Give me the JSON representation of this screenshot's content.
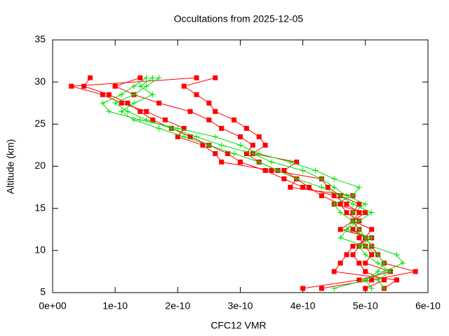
{
  "chart_data": {
    "type": "line",
    "title": "Occultations from 2025-12-05",
    "x_label": "CFC12 VMR",
    "y_label": "Altitude (km)",
    "xlim": [
      0,
      6e-10
    ],
    "xticks": [
      {
        "value": 0,
        "label": "0e+00"
      },
      {
        "value": 1e-10,
        "label": "1e-10"
      },
      {
        "value": 2e-10,
        "label": "2e-10"
      },
      {
        "value": 3e-10,
        "label": "3e-10"
      },
      {
        "value": 4e-10,
        "label": "4e-10"
      },
      {
        "value": 5e-10,
        "label": "5e-10"
      },
      {
        "value": 6e-10,
        "label": "6e-10"
      }
    ],
    "ylim": [
      5,
      35
    ],
    "yticks": [
      5,
      10,
      15,
      20,
      25,
      30,
      35
    ],
    "y": [
      5.5,
      6.5,
      7.5,
      8.5,
      9.5,
      10.5,
      11.5,
      12.5,
      13.5,
      14.5,
      15.5,
      16.5,
      17.5,
      18.5,
      19.5,
      20.5,
      21.5,
      22.5,
      23.5,
      24.5,
      25.5,
      26.5,
      27.5,
      28.5,
      29.5,
      30.5
    ],
    "series": [
      {
        "color": "#ff0000",
        "marker": "square",
        "values": [
          4e-10,
          4.9e-10,
          5.4e-10,
          5e-10,
          5.1e-10,
          5e-10,
          4.9e-10,
          4.9e-10,
          4.8e-10,
          4.9e-10,
          4.7e-10,
          4.5e-10,
          4e-10,
          3.7e-10,
          3.4e-10,
          3e-10,
          2.8e-10,
          2.5e-10,
          2.2e-10,
          1.9e-10,
          1.6e-10,
          1.4e-10,
          1.2e-10,
          9e-11,
          5e-11,
          6e-11
        ]
      },
      {
        "color": "#ff0000",
        "marker": "square",
        "values": [
          4.3e-10,
          5.1e-10,
          5.8e-10,
          5.3e-10,
          5.2e-10,
          5.1e-10,
          5e-10,
          4.8e-10,
          4.9e-10,
          4.7e-10,
          4.6e-10,
          4.3e-10,
          4.1e-10,
          3.9e-10,
          3.6e-10,
          3.3e-10,
          3.1e-10,
          3.2e-10,
          3e-10,
          2.7e-10,
          2.5e-10,
          2.2e-10,
          1.7e-10,
          1.3e-10,
          1e-10,
          1.4e-10
        ]
      },
      {
        "color": "#ff0000",
        "marker": "square",
        "values": [
          5e-10,
          5.3e-10,
          5e-10,
          4.9e-10,
          4.8e-10,
          4.9e-10,
          5e-10,
          5.1e-10,
          4.8e-10,
          4.8e-10,
          4.9e-10,
          4.6e-10,
          4.4e-10,
          4.3e-10,
          3.5e-10,
          2.7e-10,
          2.6e-10,
          2.4e-10,
          2e-10,
          2.1e-10,
          1.8e-10,
          1.5e-10,
          1.1e-10,
          8e-11,
          3e-11,
          2.3e-10
        ]
      },
      {
        "color": "#ff0000",
        "marker": "square",
        "values": [
          5.3e-10,
          5.5e-10,
          4.5e-10,
          4.6e-10,
          4.7e-10,
          4.8e-10,
          5.1e-10,
          4.6e-10,
          4.8e-10,
          5e-10,
          4.5e-10,
          4.8e-10,
          3.8e-10,
          3.9e-10,
          3.7e-10,
          3.9e-10,
          3.2e-10,
          3.4e-10,
          3.3e-10,
          3.1e-10,
          2.9e-10,
          2.6e-10,
          2.5e-10,
          2.3e-10,
          2.1e-10,
          2.6e-10
        ]
      },
      {
        "color": "#00e000",
        "marker": "plus",
        "values": [
          4.5e-10,
          5e-10,
          5.3e-10,
          5.6e-10,
          5.5e-10,
          5.1e-10,
          5e-10,
          4.9e-10,
          4.8e-10,
          4.6e-10,
          4.5e-10,
          4.8e-10,
          4.9e-10,
          4.5e-10,
          4.2e-10,
          3.8e-10,
          3.3e-10,
          3e-10,
          2.6e-10,
          2e-10,
          1.4e-10,
          9e-11,
          8e-11,
          1.1e-10,
          1.3e-10,
          1.5e-10
        ]
      },
      {
        "color": "#00e000",
        "marker": "plus",
        "values": [
          5.1e-10,
          5e-10,
          5.2e-10,
          5.3e-10,
          5.2e-10,
          5e-10,
          4.6e-10,
          4.7e-10,
          4.8e-10,
          4.8e-10,
          5e-10,
          4.7e-10,
          4.5e-10,
          4.3e-10,
          4e-10,
          3.5e-10,
          3.2e-10,
          2.7e-10,
          2.3e-10,
          1.9e-10,
          1.5e-10,
          1.2e-10,
          1e-10,
          1.3e-10,
          1.5e-10,
          1.7e-10
        ]
      },
      {
        "color": "#00e000",
        "marker": "plus",
        "values": [
          5.3e-10,
          5.2e-10,
          5.4e-10,
          5.2e-10,
          5e-10,
          4.9e-10,
          5.1e-10,
          4.7e-10,
          4.9e-10,
          5.1e-10,
          4.8e-10,
          4.6e-10,
          4.3e-10,
          3.9e-10,
          3.6e-10,
          3.3e-10,
          2.9e-10,
          2.5e-10,
          2.1e-10,
          1.7e-10,
          1.3e-10,
          1.1e-10,
          1.3e-10,
          1.6e-10,
          1.4e-10,
          1.6e-10
        ]
      }
    ]
  }
}
